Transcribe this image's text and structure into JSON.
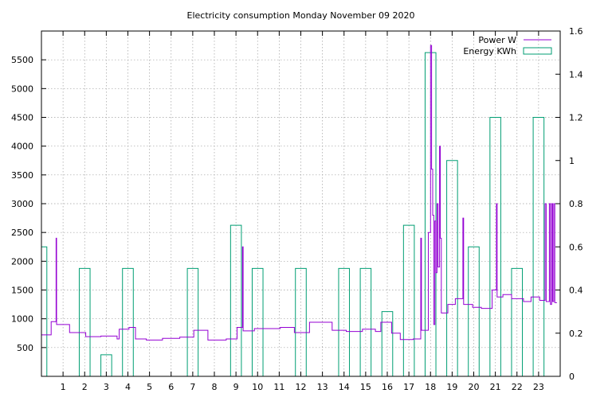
{
  "chart_data": {
    "type": "line",
    "title": "Electricity consumption Monday November 09 2020",
    "xlabel": "",
    "ylabel": "",
    "y2label": "",
    "xlim": [
      0,
      24
    ],
    "ylim": [
      0,
      6000
    ],
    "y2lim": [
      0,
      1.6
    ],
    "x_ticks": [
      1,
      2,
      3,
      4,
      5,
      6,
      7,
      8,
      9,
      10,
      11,
      12,
      13,
      14,
      15,
      16,
      17,
      18,
      19,
      20,
      21,
      22,
      23
    ],
    "y_ticks": [
      500,
      1000,
      1500,
      2000,
      2500,
      3000,
      3500,
      4000,
      4500,
      5000,
      5500
    ],
    "y2_ticks": [
      0,
      0.2,
      0.4,
      0.6,
      0.8,
      1,
      1.2,
      1.4,
      1.6
    ],
    "grid": true,
    "legend_position": "top-right",
    "colors": {
      "power": "#9400d3",
      "energy": "#009e73"
    },
    "series": [
      {
        "name": "Power W",
        "axis": "left",
        "style": "step",
        "points": [
          [
            0,
            720
          ],
          [
            0.45,
            720
          ],
          [
            0.45,
            950
          ],
          [
            0.68,
            950
          ],
          [
            0.68,
            2400
          ],
          [
            0.7,
            2400
          ],
          [
            0.7,
            900
          ],
          [
            1.3,
            900
          ],
          [
            1.3,
            760
          ],
          [
            2.05,
            760
          ],
          [
            2.05,
            690
          ],
          [
            2.75,
            690
          ],
          [
            2.75,
            700
          ],
          [
            3.5,
            700
          ],
          [
            3.5,
            650
          ],
          [
            3.6,
            650
          ],
          [
            3.6,
            820
          ],
          [
            4.05,
            820
          ],
          [
            4.05,
            850
          ],
          [
            4.35,
            850
          ],
          [
            4.35,
            650
          ],
          [
            4.85,
            650
          ],
          [
            4.85,
            630
          ],
          [
            5.6,
            630
          ],
          [
            5.6,
            660
          ],
          [
            6.4,
            660
          ],
          [
            6.4,
            680
          ],
          [
            7.05,
            680
          ],
          [
            7.05,
            800
          ],
          [
            7.7,
            800
          ],
          [
            7.7,
            630
          ],
          [
            8.55,
            630
          ],
          [
            8.55,
            650
          ],
          [
            9.05,
            650
          ],
          [
            9.05,
            850
          ],
          [
            9.3,
            850
          ],
          [
            9.3,
            2250
          ],
          [
            9.33,
            2250
          ],
          [
            9.33,
            790
          ],
          [
            9.85,
            790
          ],
          [
            9.85,
            830
          ],
          [
            11.05,
            830
          ],
          [
            11.05,
            850
          ],
          [
            11.7,
            850
          ],
          [
            11.7,
            760
          ],
          [
            12.4,
            760
          ],
          [
            12.4,
            940
          ],
          [
            13.45,
            940
          ],
          [
            13.45,
            800
          ],
          [
            14.1,
            800
          ],
          [
            14.1,
            780
          ],
          [
            14.85,
            780
          ],
          [
            14.85,
            820
          ],
          [
            15.45,
            820
          ],
          [
            15.45,
            780
          ],
          [
            15.7,
            780
          ],
          [
            15.7,
            940
          ],
          [
            16.2,
            940
          ],
          [
            16.2,
            750
          ],
          [
            16.6,
            750
          ],
          [
            16.6,
            640
          ],
          [
            17.2,
            640
          ],
          [
            17.2,
            650
          ],
          [
            17.55,
            650
          ],
          [
            17.55,
            2400
          ],
          [
            17.58,
            2400
          ],
          [
            17.58,
            800
          ],
          [
            17.9,
            800
          ],
          [
            17.9,
            2500
          ],
          [
            18.0,
            2500
          ],
          [
            18.0,
            5750
          ],
          [
            18.05,
            5750
          ],
          [
            18.05,
            3600
          ],
          [
            18.1,
            3600
          ],
          [
            18.1,
            2800
          ],
          [
            18.15,
            2800
          ],
          [
            18.15,
            900
          ],
          [
            18.2,
            900
          ],
          [
            18.2,
            2700
          ],
          [
            18.25,
            2700
          ],
          [
            18.25,
            1800
          ],
          [
            18.3,
            1800
          ],
          [
            18.3,
            3000
          ],
          [
            18.35,
            3000
          ],
          [
            18.35,
            1900
          ],
          [
            18.42,
            1900
          ],
          [
            18.42,
            4000
          ],
          [
            18.45,
            4000
          ],
          [
            18.45,
            2400
          ],
          [
            18.5,
            2400
          ],
          [
            18.5,
            1100
          ],
          [
            18.8,
            1100
          ],
          [
            18.8,
            1250
          ],
          [
            19.15,
            1250
          ],
          [
            19.15,
            1350
          ],
          [
            19.5,
            1350
          ],
          [
            19.5,
            2750
          ],
          [
            19.53,
            2750
          ],
          [
            19.53,
            1250
          ],
          [
            19.95,
            1250
          ],
          [
            19.95,
            1200
          ],
          [
            20.35,
            1200
          ],
          [
            20.35,
            1180
          ],
          [
            20.85,
            1180
          ],
          [
            20.85,
            1500
          ],
          [
            21.05,
            1500
          ],
          [
            21.05,
            3000
          ],
          [
            21.08,
            3000
          ],
          [
            21.08,
            1380
          ],
          [
            21.35,
            1380
          ],
          [
            21.35,
            1420
          ],
          [
            21.75,
            1420
          ],
          [
            21.75,
            1350
          ],
          [
            22.3,
            1350
          ],
          [
            22.3,
            1300
          ],
          [
            22.65,
            1300
          ],
          [
            22.65,
            1380
          ],
          [
            23.05,
            1380
          ],
          [
            23.05,
            1320
          ],
          [
            23.3,
            1320
          ],
          [
            23.3,
            3000
          ],
          [
            23.35,
            3000
          ],
          [
            23.35,
            1300
          ],
          [
            23.5,
            1300
          ],
          [
            23.5,
            3000
          ],
          [
            23.55,
            3000
          ],
          [
            23.55,
            1250
          ],
          [
            23.6,
            1250
          ],
          [
            23.6,
            3000
          ],
          [
            23.65,
            3000
          ],
          [
            23.65,
            1300
          ],
          [
            23.7,
            1300
          ],
          [
            23.7,
            3000
          ],
          [
            23.75,
            3000
          ],
          [
            23.75,
            1280
          ],
          [
            23.85,
            1280
          ]
        ]
      },
      {
        "name": "Energy KWh",
        "axis": "right",
        "style": "boxes",
        "bars": [
          {
            "x": 0,
            "value": 0.6
          },
          {
            "x": 2,
            "value": 0.5
          },
          {
            "x": 3,
            "value": 0.1
          },
          {
            "x": 4,
            "value": 0.5
          },
          {
            "x": 7,
            "value": 0.5
          },
          {
            "x": 9,
            "value": 0.7
          },
          {
            "x": 10,
            "value": 0.5
          },
          {
            "x": 12,
            "value": 0.5
          },
          {
            "x": 14,
            "value": 0.5
          },
          {
            "x": 15,
            "value": 0.5
          },
          {
            "x": 16,
            "value": 0.3
          },
          {
            "x": 17,
            "value": 0.7
          },
          {
            "x": 18,
            "value": 1.5
          },
          {
            "x": 19,
            "value": 1.0
          },
          {
            "x": 20,
            "value": 0.6
          },
          {
            "x": 21,
            "value": 1.2
          },
          {
            "x": 22,
            "value": 0.5
          },
          {
            "x": 23,
            "value": 1.2
          }
        ]
      }
    ]
  }
}
